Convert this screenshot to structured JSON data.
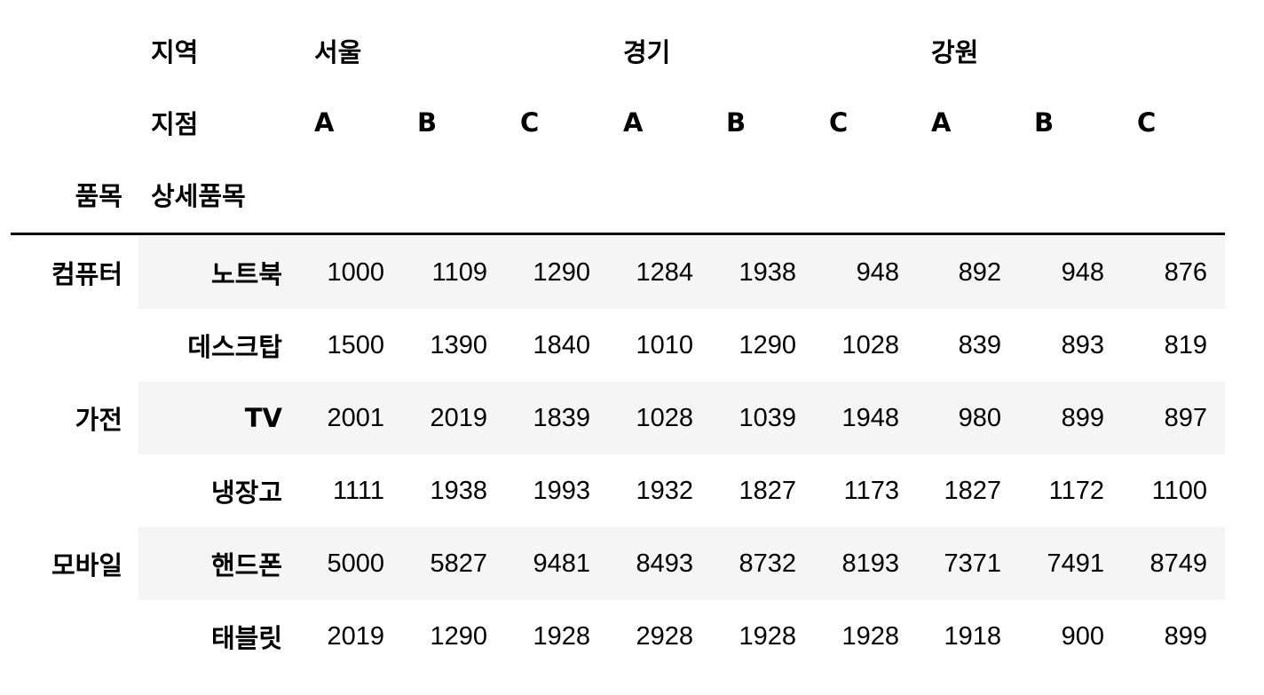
{
  "header": {
    "region_label": "지역",
    "branch_label": "지점",
    "category_label": "품목",
    "detail_label": "상세품목",
    "regions": [
      "서울",
      "경기",
      "강원"
    ],
    "branches": [
      "A",
      "B",
      "C",
      "A",
      "B",
      "C",
      "A",
      "B",
      "C"
    ]
  },
  "groups": [
    "컴퓨터",
    "가전",
    "모바일"
  ],
  "rows": [
    {
      "item": "노트북",
      "values": [
        "1000",
        "1109",
        "1290",
        "1284",
        "1938",
        "948",
        "892",
        "948",
        "876"
      ]
    },
    {
      "item": "데스크탑",
      "values": [
        "1500",
        "1390",
        "1840",
        "1010",
        "1290",
        "1028",
        "839",
        "893",
        "819"
      ]
    },
    {
      "item": "TV",
      "values": [
        "2001",
        "2019",
        "1839",
        "1028",
        "1039",
        "1948",
        "980",
        "899",
        "897"
      ]
    },
    {
      "item": "냉장고",
      "values": [
        "1111",
        "1938",
        "1993",
        "1932",
        "1827",
        "1173",
        "1827",
        "1172",
        "1100"
      ]
    },
    {
      "item": "핸드폰",
      "values": [
        "5000",
        "5827",
        "9481",
        "8493",
        "8732",
        "8193",
        "7371",
        "7491",
        "8749"
      ]
    },
    {
      "item": "태블릿",
      "values": [
        "2019",
        "1290",
        "1928",
        "2928",
        "1928",
        "1928",
        "1918",
        "900",
        "899"
      ]
    }
  ]
}
